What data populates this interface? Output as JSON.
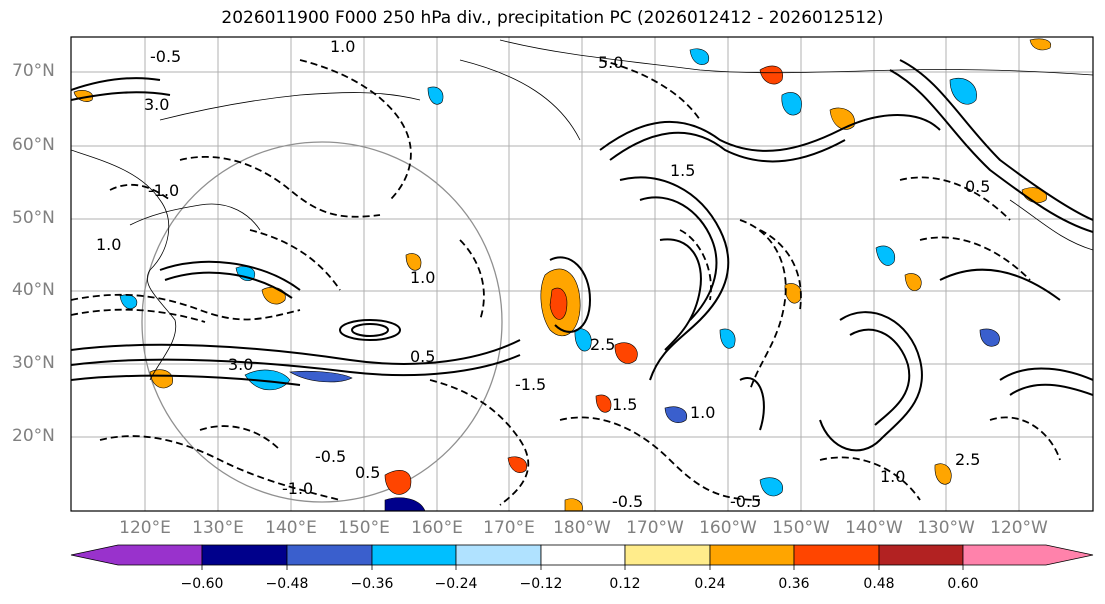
{
  "title": "2026011900 F000 250 hPa div., precipitation PC (2026012412 - 2026012512)",
  "latitude_labels": [
    "70°N",
    "60°N",
    "50°N",
    "40°N",
    "30°N",
    "20°N"
  ],
  "longitude_labels": [
    "120°E",
    "130°E",
    "140°E",
    "150°E",
    "160°E",
    "170°E",
    "180°W",
    "170°W",
    "160°W",
    "150°W",
    "140°W",
    "130°W",
    "120°W"
  ],
  "colorbar": {
    "ticks": [
      "−0.60",
      "−0.48",
      "−0.36",
      "−0.24",
      "−0.12",
      "0.12",
      "0.24",
      "0.36",
      "0.48",
      "0.60"
    ],
    "colors": [
      "#9932cc",
      "#00008b",
      "#3a5fcd",
      "#00bfff",
      "#b0e2ff",
      "#ffffff",
      "#ffec8b",
      "#ffa500",
      "#ff4500",
      "#b22222",
      "#ff82ab"
    ]
  },
  "contour_labels": [
    "-0.5",
    "1.0",
    "5.0",
    "3.0",
    "-1.0",
    "0.5",
    "-1.5",
    "2.5",
    "1.5"
  ]
}
